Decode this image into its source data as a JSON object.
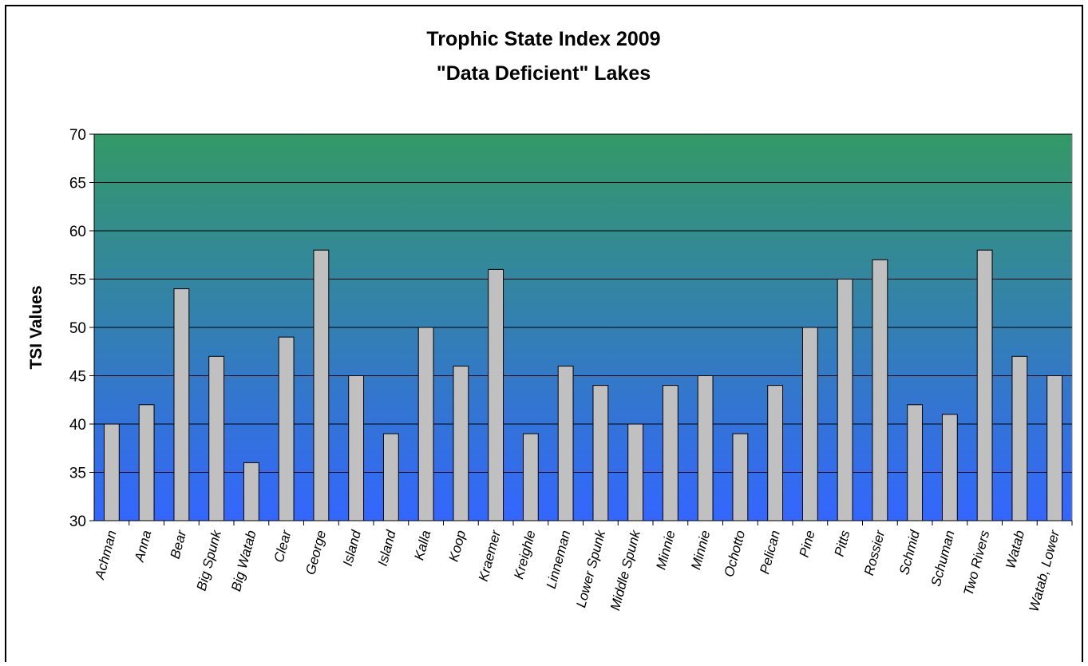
{
  "chart_data": {
    "type": "bar",
    "title": [
      "Trophic State Index 2009",
      "\"Data Deficient\" Lakes"
    ],
    "xlabel": "",
    "ylabel": "TSI Values",
    "ylim": [
      30,
      70
    ],
    "yticks": [
      30,
      35,
      40,
      45,
      50,
      55,
      60,
      65,
      70
    ],
    "grid": true,
    "legend": "none",
    "background_gradient": {
      "top": "#339966",
      "bottom": "#3366ff"
    },
    "bar_color": "#c0c0c0",
    "categories": [
      "Achman",
      "Anna",
      "Bear",
      "Big Spunk",
      "Big Watab",
      "Clear",
      "George",
      "Island",
      "Island",
      "Kalla",
      "Koop",
      "Kraemer",
      "Kreighle",
      "Linneman",
      "Lower Spunk",
      "Middle Spunk",
      "Minnie",
      "Minnie",
      "Ochotto",
      "Pelican",
      "Pine",
      "Pitts",
      "Rossier",
      "Schmid",
      "Schuman",
      "Two Rivers",
      "Watab",
      "Watab, Lower"
    ],
    "values": [
      40,
      42,
      54,
      47,
      36,
      49,
      58,
      45,
      39,
      50,
      46,
      56,
      39,
      46,
      44,
      40,
      44,
      45,
      39,
      44,
      50,
      55,
      57,
      42,
      41,
      58,
      47,
      45
    ]
  }
}
